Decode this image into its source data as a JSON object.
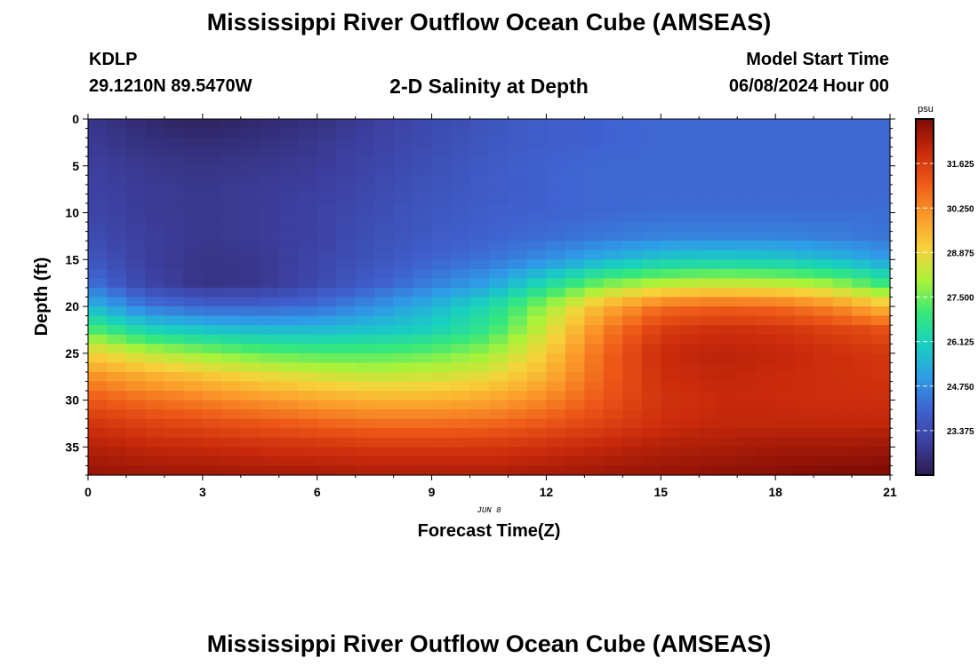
{
  "page": {
    "title_top": "Mississippi River Outflow Ocean Cube (AMSEAS)",
    "title_bottom": "Mississippi River Outflow Ocean Cube (AMSEAS)",
    "station_id": "KDLP",
    "station_coords": "29.1210N  89.5470W",
    "plot_title": "2-D Salinity at Depth",
    "model_start_label": "Model Start Time",
    "model_start_value": "06/08/2024 Hour 00",
    "date_label": "JUN 8"
  },
  "chart_data": {
    "type": "heatmap",
    "title": "2-D Salinity at Depth",
    "xlabel": "Forecast Time(Z)",
    "ylabel": "Depth (ft)",
    "xlim": [
      0,
      21
    ],
    "ylim": [
      38,
      0
    ],
    "x_ticks": [
      0,
      3,
      6,
      9,
      12,
      15,
      18,
      21
    ],
    "y_ticks": [
      0,
      5,
      10,
      15,
      20,
      25,
      30,
      35
    ],
    "colorbar": {
      "unit": "psu",
      "min": 22.0,
      "max": 33.0,
      "ticks": [
        "31.625",
        "30.250",
        "28.875",
        "27.500",
        "26.125",
        "24.750",
        "23.375"
      ],
      "colors": [
        "#2b1b4e",
        "#3c3f9e",
        "#3f62d0",
        "#2f9be8",
        "#18cfc1",
        "#36e87a",
        "#a9f23a",
        "#f7d23a",
        "#fb9a2a",
        "#ee5a18",
        "#c92a0b",
        "#7e0b05"
      ]
    },
    "x_hours": [
      0,
      1.5,
      3,
      4.5,
      6,
      7.5,
      9,
      10.5,
      12,
      13.5,
      15,
      16.5,
      18,
      19.5,
      21
    ],
    "depth_ft": [
      0,
      2.5,
      5,
      7.5,
      10,
      12.5,
      15,
      17.5,
      20,
      22.5,
      25,
      27.5,
      30,
      32.5,
      35,
      38
    ],
    "salinity_psu": [
      [
        22.8,
        22.4,
        22.2,
        22.4,
        22.6,
        23.0,
        23.3,
        23.6,
        23.9,
        24.0,
        24.1,
        24.1,
        24.1,
        24.1,
        24.1
      ],
      [
        22.9,
        22.6,
        22.5,
        22.6,
        22.8,
        23.1,
        23.4,
        23.7,
        23.9,
        24.0,
        24.1,
        24.1,
        24.1,
        24.1,
        24.1
      ],
      [
        23.0,
        22.8,
        22.7,
        22.8,
        22.9,
        23.2,
        23.5,
        23.8,
        24.0,
        24.1,
        24.1,
        24.1,
        24.1,
        24.1,
        24.1
      ],
      [
        23.1,
        22.9,
        22.8,
        22.9,
        23.0,
        23.3,
        23.6,
        23.8,
        24.0,
        24.1,
        24.1,
        24.1,
        24.1,
        24.1,
        24.1
      ],
      [
        23.2,
        22.9,
        22.8,
        22.9,
        23.1,
        23.4,
        23.7,
        23.9,
        24.0,
        24.1,
        24.2,
        24.2,
        24.2,
        24.2,
        24.2
      ],
      [
        23.4,
        23.0,
        22.8,
        22.9,
        23.1,
        23.5,
        23.8,
        24.0,
        24.2,
        24.4,
        24.6,
        24.6,
        24.6,
        24.5,
        24.3
      ],
      [
        23.7,
        23.0,
        22.7,
        22.8,
        23.2,
        23.6,
        24.0,
        24.3,
        24.8,
        25.4,
        25.9,
        26.0,
        25.9,
        25.6,
        25.0
      ],
      [
        24.3,
        23.2,
        22.7,
        22.8,
        23.3,
        23.9,
        24.5,
        25.1,
        26.3,
        27.5,
        28.1,
        28.3,
        28.2,
        27.8,
        26.8
      ],
      [
        25.6,
        24.4,
        24.0,
        24.0,
        24.2,
        24.8,
        25.5,
        26.3,
        27.9,
        29.6,
        30.7,
        30.9,
        30.8,
        30.3,
        29.3
      ],
      [
        27.3,
        26.2,
        25.8,
        25.6,
        25.6,
        25.8,
        26.1,
        26.9,
        28.5,
        30.4,
        31.6,
        31.9,
        31.8,
        31.5,
        31.2
      ],
      [
        29.0,
        28.3,
        27.8,
        27.4,
        27.2,
        27.2,
        27.4,
        27.9,
        29.1,
        30.8,
        32.0,
        32.2,
        32.1,
        31.9,
        31.7
      ],
      [
        30.2,
        29.7,
        29.3,
        28.9,
        28.6,
        28.4,
        28.5,
        28.8,
        29.6,
        30.9,
        31.9,
        32.1,
        32.0,
        31.9,
        31.8
      ],
      [
        31.1,
        30.7,
        30.4,
        30.1,
        29.8,
        29.6,
        29.6,
        29.8,
        30.3,
        31.1,
        31.8,
        32.0,
        32.0,
        31.9,
        31.9
      ],
      [
        31.8,
        31.5,
        31.3,
        31.1,
        30.9,
        30.7,
        30.7,
        30.8,
        31.1,
        31.5,
        31.9,
        32.1,
        32.1,
        32.1,
        32.1
      ],
      [
        32.3,
        32.1,
        32.0,
        31.9,
        31.8,
        31.7,
        31.7,
        31.7,
        31.9,
        32.1,
        32.3,
        32.4,
        32.5,
        32.5,
        32.6
      ],
      [
        32.7,
        32.6,
        32.6,
        32.5,
        32.5,
        32.4,
        32.4,
        32.4,
        32.5,
        32.6,
        32.7,
        32.8,
        32.9,
        33.0,
        33.0
      ]
    ]
  }
}
